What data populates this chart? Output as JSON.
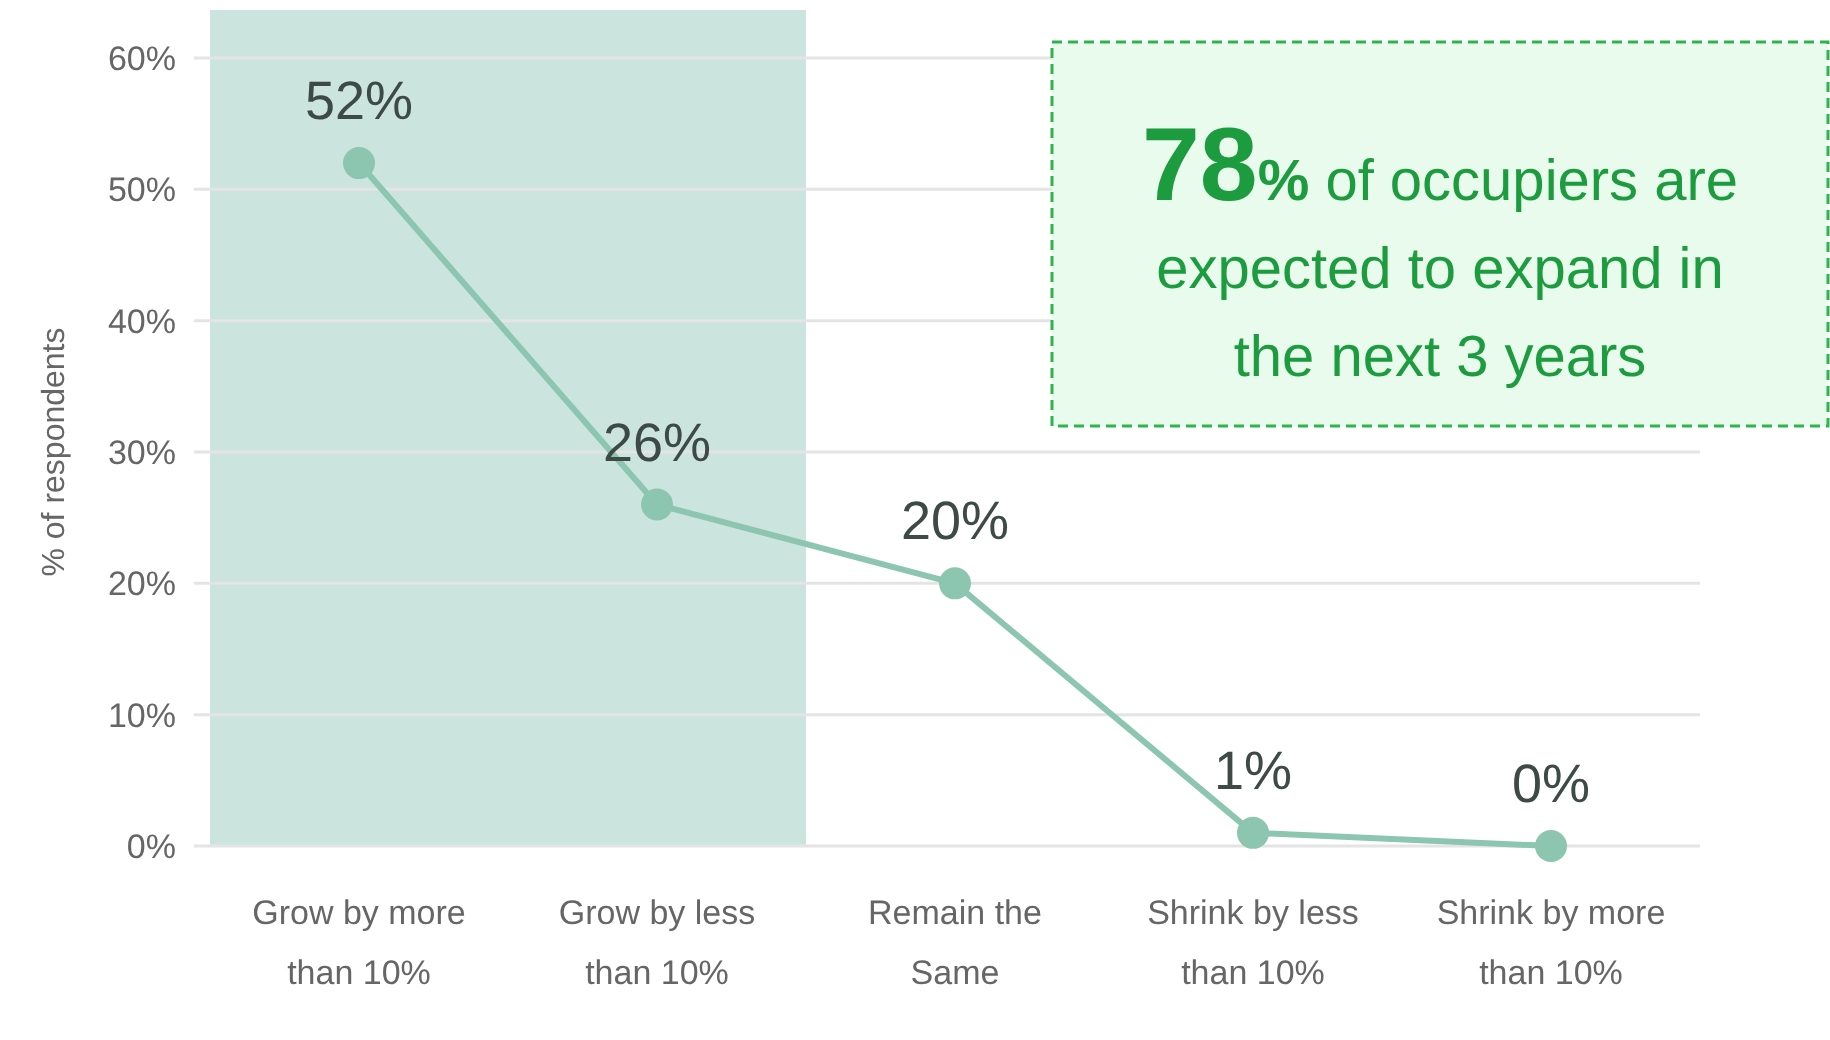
{
  "chart_data": {
    "type": "line",
    "ylabel": "% of respondents",
    "categories": [
      "Grow by more than 10%",
      "Grow by less than 10%",
      "Remain the Same",
      "Shrink by less than 10%",
      "Shrink by more than 10%"
    ],
    "series": [
      {
        "color": "#8cc5b0",
        "values": [
          52,
          26,
          20,
          1,
          0
        ],
        "value_labels": [
          "52%",
          "26%",
          "20%",
          "1%",
          "0%"
        ]
      }
    ],
    "ylim": [
      0,
      60
    ],
    "yticks": [
      {
        "value": 0,
        "label": "0%"
      },
      {
        "value": 10,
        "label": "10%"
      },
      {
        "value": 20,
        "label": "20%"
      },
      {
        "value": 30,
        "label": "30%"
      },
      {
        "value": 40,
        "label": "40%"
      },
      {
        "value": 50,
        "label": "50%"
      },
      {
        "value": 60,
        "label": "60%"
      }
    ],
    "grid": "y",
    "marker": "circle",
    "line_style": "solid",
    "bands": [
      {
        "axis": "x",
        "from": "Grow by more than 10%",
        "to": "Grow by less than 10%",
        "color": "#cce4de"
      }
    ],
    "annotations": [
      "78% of occupiers are expected to expand in the next 3 years"
    ]
  }
}
